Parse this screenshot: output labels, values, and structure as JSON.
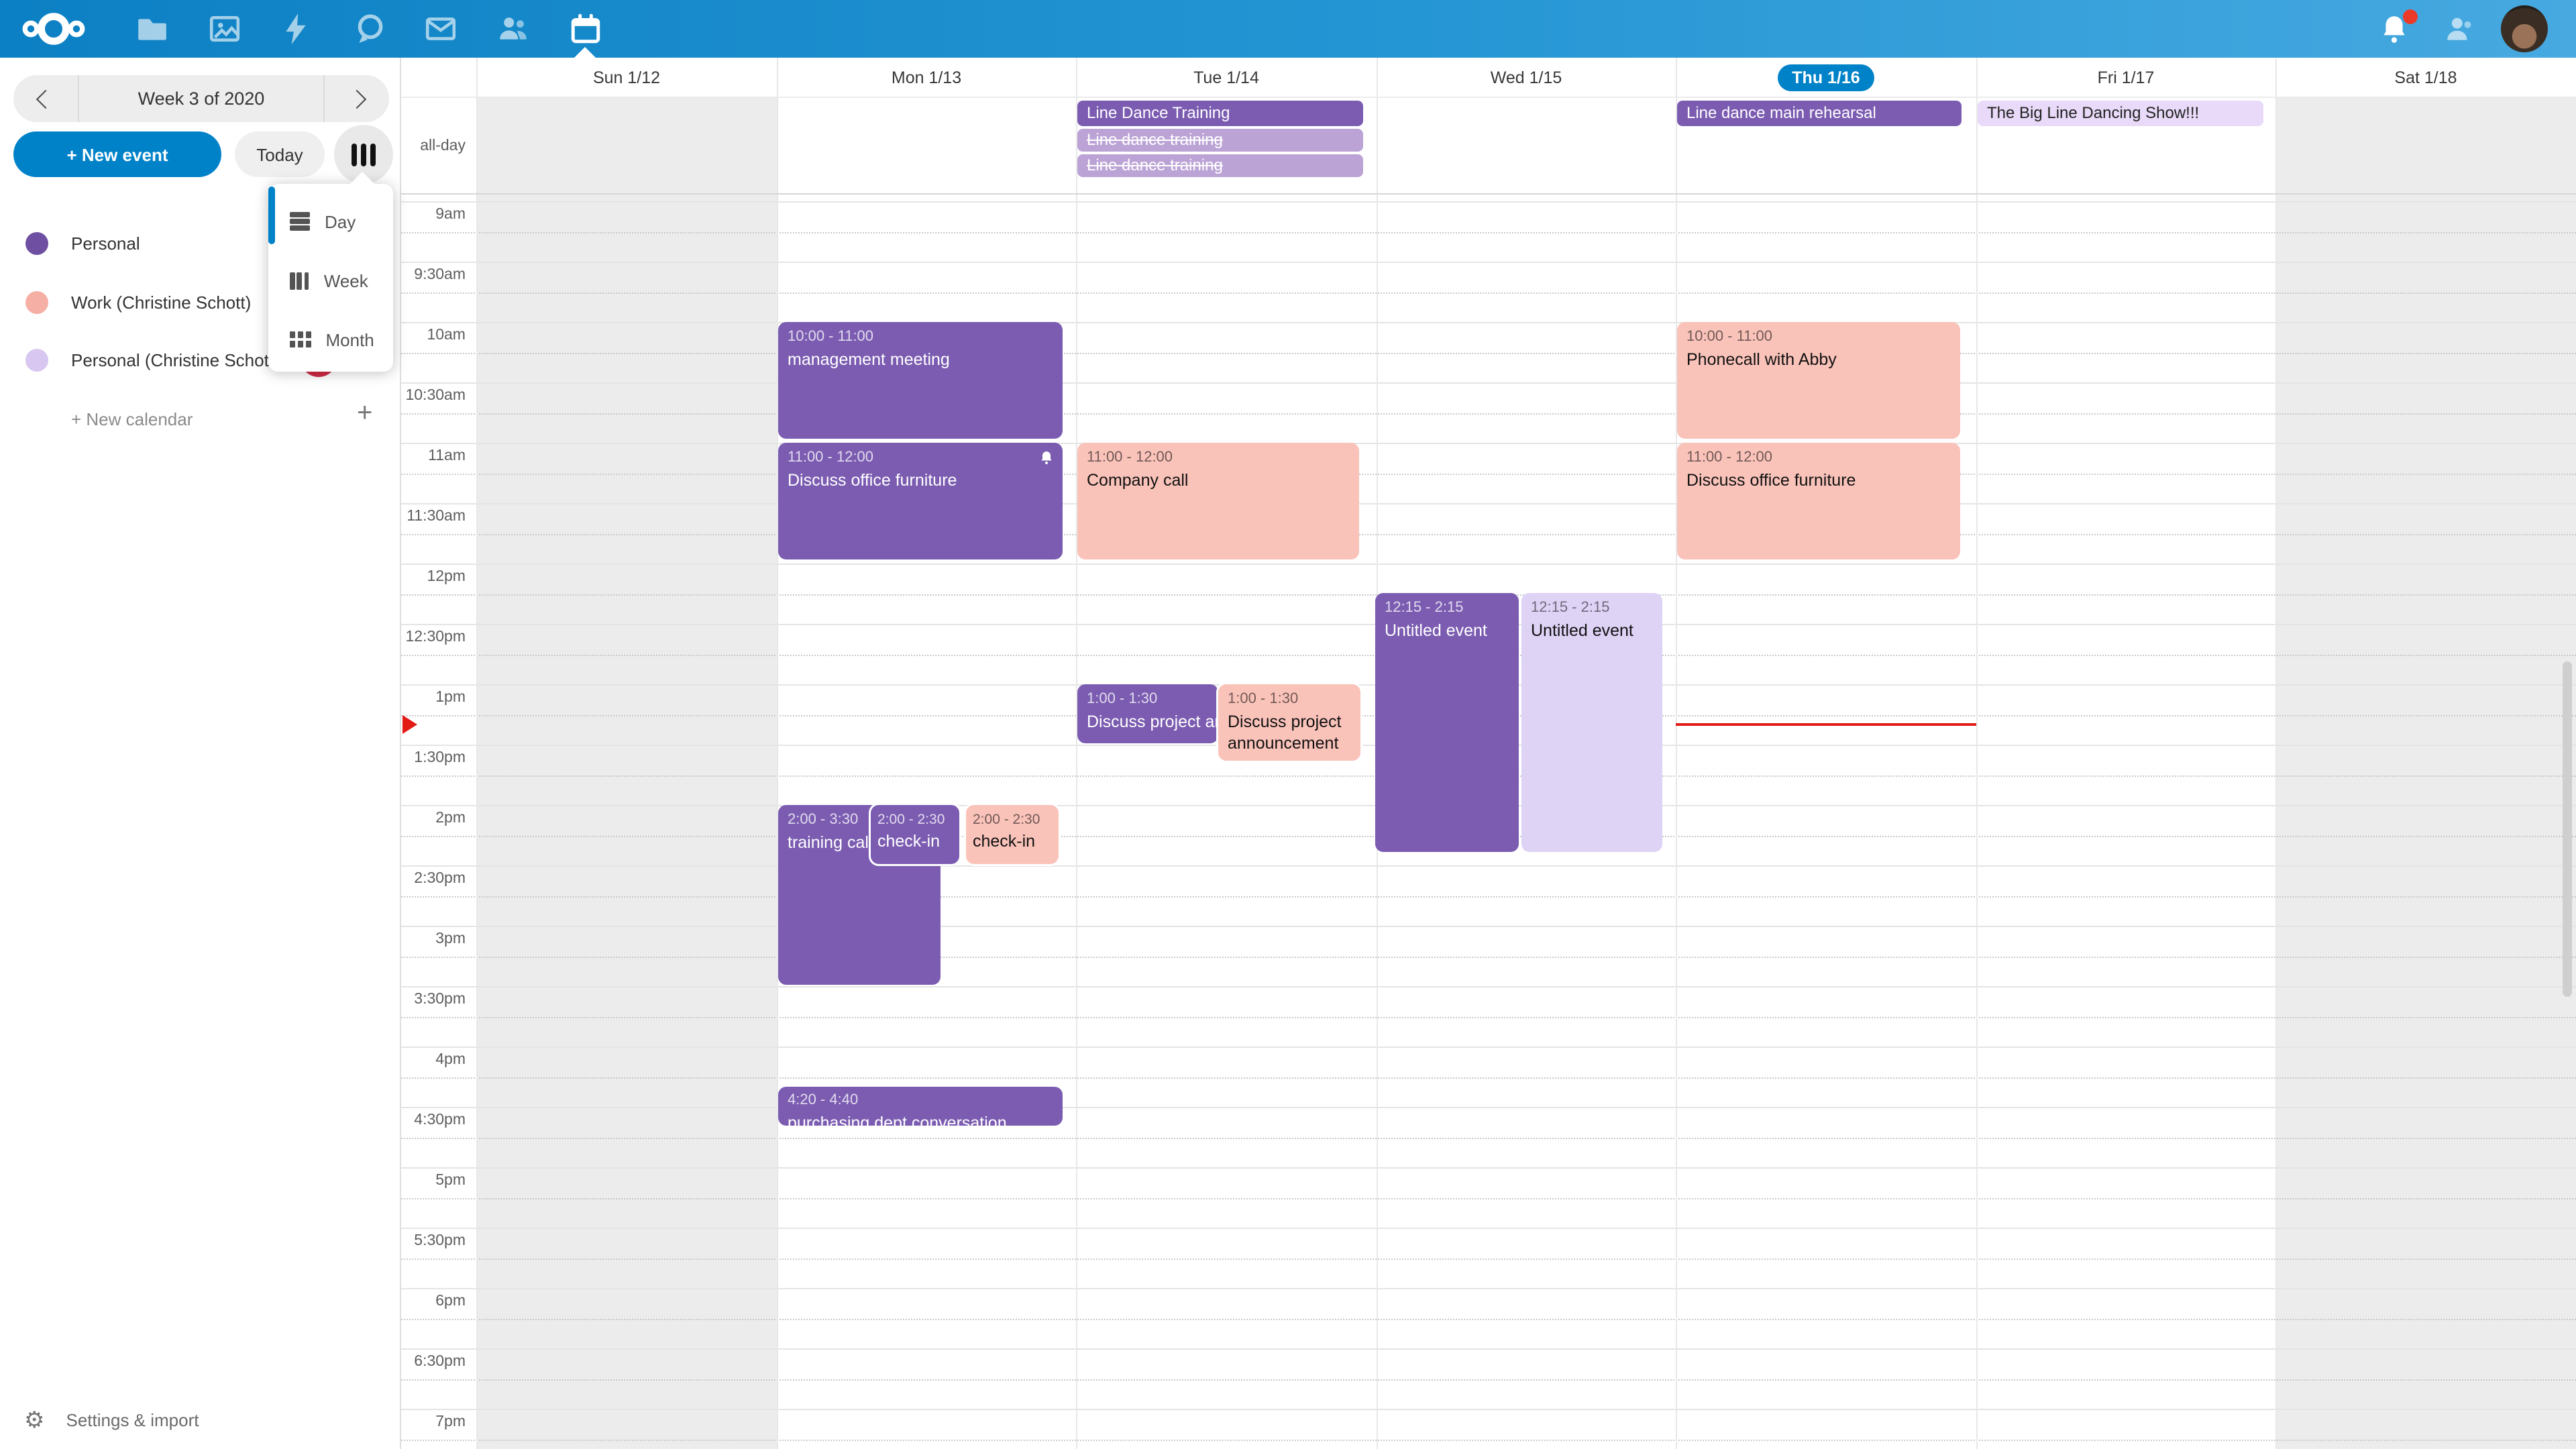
{
  "topbar": {
    "apps": [
      {
        "icon": "nextcloud-logo"
      },
      {
        "icon": "files-icon"
      },
      {
        "icon": "photos-icon"
      },
      {
        "icon": "activity-icon"
      },
      {
        "icon": "talk-icon"
      },
      {
        "icon": "mail-icon"
      },
      {
        "icon": "contacts-icon"
      },
      {
        "icon": "calendar-icon",
        "active": true
      }
    ],
    "right": [
      {
        "icon": "bell-icon",
        "has_unread_badge": true
      },
      {
        "icon": "contacts-menu-icon"
      },
      {
        "icon": "avatar"
      }
    ]
  },
  "sidebar": {
    "week_nav": {
      "label": "Week 3 of 2020",
      "prev_icon": "chevron-left-icon",
      "next_icon": "chevron-right-icon"
    },
    "new_event_label": "+ New event",
    "today_label": "Today",
    "view_button_icon": "view-week-icon",
    "view_menu": {
      "items": [
        {
          "icon": "view-day-icon",
          "label": "Day"
        },
        {
          "icon": "view-week-icon",
          "label": "Week"
        },
        {
          "icon": "view-month-icon",
          "label": "Month"
        }
      ]
    },
    "calendars": [
      {
        "label": "Personal",
        "color": "#6E4FA2"
      },
      {
        "label": "Work (Christine Schott)",
        "color": "#F5AFA4"
      },
      {
        "label": "Personal (Christine Schott)",
        "color": "#D8C7F0",
        "has_avatar": true,
        "menu_icon": "ellipsis-icon"
      }
    ],
    "new_calendar_label": "+ New calendar",
    "settings_label": "Settings & import",
    "settings_icon": "gear-icon"
  },
  "calendar": {
    "days": [
      {
        "label": "Sun 1/12",
        "today": false
      },
      {
        "label": "Mon 1/13",
        "today": false
      },
      {
        "label": "Tue 1/14",
        "today": false
      },
      {
        "label": "Wed 1/15",
        "today": false
      },
      {
        "label": "Thu 1/16",
        "today": true
      },
      {
        "label": "Fri 1/17",
        "today": false
      },
      {
        "label": "Sat 1/18",
        "today": false
      }
    ],
    "allday_label": "all-day",
    "time_labels": [
      "9am",
      "9:30am",
      "10am",
      "10:30am",
      "11am",
      "11:30am",
      "12pm",
      "12:30pm",
      "1pm",
      "1:30pm",
      "2pm",
      "2:30pm",
      "3pm",
      "3:30pm",
      "4pm",
      "4:30pm",
      "5pm",
      "5:30pm",
      "6pm",
      "6:30pm",
      "7pm"
    ],
    "allday_events": [
      {
        "day": "Tue 1/14",
        "title": "Line Dance Training",
        "style": "solid-purple"
      },
      {
        "day": "Tue 1/14",
        "title": "Line dance training",
        "style": "strikethrough-light-purple"
      },
      {
        "day": "Tue 1/14",
        "title": "Line dance training",
        "style": "strikethrough-light-purple"
      },
      {
        "day": "Thu 1/16",
        "title": "Line dance main rehearsal",
        "style": "solid-purple"
      },
      {
        "day": "Fri 1/17",
        "title": "The Big Line Dancing Show!!!",
        "style": "lavender"
      }
    ],
    "events": [
      {
        "day": "Mon 1/13",
        "time": "10:00 - 11:00",
        "title": "management meeting",
        "color": "purple"
      },
      {
        "day": "Mon 1/13",
        "time": "11:00 - 12:00",
        "title": "Discuss office furniture",
        "color": "purple",
        "has_alarm": true
      },
      {
        "day": "Tue 1/14",
        "time": "11:00 - 12:00",
        "title": "Company call",
        "color": "salmon"
      },
      {
        "day": "Wed 1/15",
        "time": "12:15 - 2:15",
        "title": "Untitled event",
        "color": "purple"
      },
      {
        "day": "Wed 1/15",
        "time": "12:15 - 2:15",
        "title": "Untitled event",
        "color": "lavender"
      },
      {
        "day": "Tue 1/14",
        "time": "1:00 - 1:30",
        "title": "Discuss project announcement",
        "color": "purple"
      },
      {
        "day": "Tue 1/14",
        "time": "1:00 - 1:30",
        "title": "Discuss project announcement",
        "color": "salmon"
      },
      {
        "day": "Mon 1/13",
        "time": "2:00 - 3:30",
        "title": "training call",
        "color": "purple"
      },
      {
        "day": "Mon 1/13",
        "time": "2:00 - 2:30",
        "title": "check-in",
        "color": "purple"
      },
      {
        "day": "Mon 1/13",
        "time": "2:00 - 2:30",
        "title": "check-in",
        "color": "salmon"
      },
      {
        "day": "Thu 1/16",
        "time": "10:00 - 11:00",
        "title": "Phonecall with Abby",
        "color": "salmon"
      },
      {
        "day": "Thu 1/16",
        "time": "11:00 - 12:00",
        "title": "Discuss office furniture",
        "color": "salmon"
      },
      {
        "day": "Mon 1/13",
        "time": "4:20 - 4:40",
        "title": "purchasing dept conversation",
        "color": "purple"
      }
    ],
    "now_indicator": {
      "day": "Thu 1/16",
      "approx_time": "1:20pm",
      "color": "#E31B17"
    }
  },
  "colors": {
    "accent_blue": "#0082C9",
    "event_purple": "#7B5CB1",
    "event_purple_faded": "#BCA3D6",
    "event_salmon": "#FAC3BA",
    "event_lavender": "#DED2F5",
    "weekend_gray": "#ECECEC",
    "now_red": "#E31B17"
  }
}
